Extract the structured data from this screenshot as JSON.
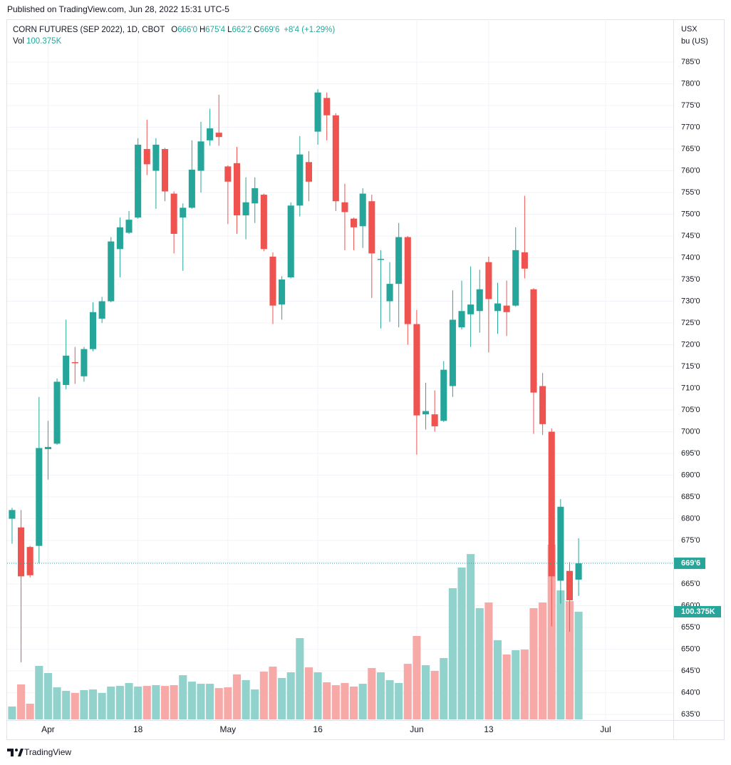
{
  "header": "Published on TradingView.com, Jun 28, 2022 15:31 UTC-5",
  "footer": "TradingView",
  "chart_data": {
    "type": "candlestick",
    "title": "CORN FUTURES (SEP 2022), 1D, CBOT",
    "legend_ohlc": [
      {
        "key": "O",
        "value": "666'0"
      },
      {
        "key": "H",
        "value": "675'4"
      },
      {
        "key": "L",
        "value": "662'2"
      },
      {
        "key": "C",
        "value": "669'6"
      }
    ],
    "change": "+8'4 (+1.29%)",
    "volume_title": "Vol",
    "volume_value_label": "100.375K",
    "y_unit": [
      "USX",
      "bu (US)"
    ],
    "up_color": "#26a69a",
    "down_color": "#ef5350",
    "up_volume_color": "#92d2cc",
    "down_volume_color": "#f7a9a7",
    "open": [
      680,
      678,
      673.5,
      673.75,
      696,
      697.25,
      710.75,
      716,
      712.75,
      719,
      726,
      730,
      742,
      745.75,
      749.25,
      765,
      760,
      765,
      754.75,
      749.25,
      751.5,
      760,
      767,
      768.75,
      761,
      761.75,
      749.75,
      752.5,
      754.5,
      740.25,
      729.25,
      735.5,
      752,
      762,
      769,
      776.75,
      772.75,
      752.75,
      749,
      747.25,
      753,
      739.5,
      730,
      734,
      744.75,
      724.75,
      704,
      704,
      702.5,
      710.5,
      724,
      727,
      727.75,
      739,
      727.75,
      729,
      729,
      741.25,
      732.75,
      710.5,
      700,
      665.75,
      668,
      666
    ],
    "high": [
      682.5,
      682,
      673.75,
      708,
      702.5,
      712.25,
      725.75,
      719.5,
      719.5,
      729.75,
      731,
      744.75,
      749.25,
      750.75,
      767.5,
      771.75,
      767.5,
      765.25,
      755.25,
      752.5,
      767,
      771.25,
      774.25,
      777.5,
      761.25,
      765.5,
      758.5,
      758.5,
      754.75,
      741.25,
      735.75,
      752.75,
      768,
      764.5,
      778.75,
      778,
      773.25,
      757,
      749.25,
      756,
      754.5,
      741.75,
      739,
      748,
      745,
      728,
      711.25,
      709.5,
      716.25,
      732.5,
      734.75,
      738,
      737.25,
      740.25,
      734.25,
      734.75,
      747,
      754.25,
      733,
      713.5,
      700.75,
      684.5,
      670,
      675.5
    ],
    "low": [
      674.25,
      647,
      666.5,
      669.75,
      689,
      697,
      709.75,
      711,
      711.5,
      718.5,
      725,
      729.75,
      735.5,
      745.5,
      749,
      759,
      751.25,
      753,
      741,
      737,
      751.25,
      755,
      765.75,
      765.75,
      747.75,
      745.5,
      744.25,
      748,
      741.5,
      724.75,
      725.75,
      735.25,
      749.5,
      753,
      766,
      767,
      750.75,
      741.75,
      741.75,
      742.25,
      730.75,
      723.75,
      725.25,
      724,
      720,
      694.75,
      700.5,
      700,
      702.25,
      708,
      723.5,
      719.5,
      722.75,
      718.25,
      722.5,
      722,
      728.75,
      735.25,
      699.5,
      699.25,
      655.25,
      660.5,
      654,
      662.25
    ],
    "close": [
      682,
      666.75,
      667,
      696.25,
      696.5,
      711.5,
      717.5,
      715.75,
      719,
      727.5,
      730,
      743.75,
      747,
      748.75,
      766,
      761.5,
      766,
      755.25,
      745.5,
      751.5,
      760.25,
      766.75,
      769.75,
      767.75,
      757.5,
      749.75,
      752.75,
      756,
      742,
      729,
      735,
      752,
      763.75,
      757.5,
      778,
      772.75,
      753,
      750.5,
      747,
      754.75,
      741,
      739.75,
      734,
      744.75,
      724.75,
      703.75,
      704.75,
      701.25,
      714.25,
      725.75,
      727.75,
      729.25,
      732.75,
      730.5,
      729.5,
      727.5,
      741.75,
      737.5,
      709,
      701.75,
      666.75,
      682.75,
      661.25,
      669.75
    ],
    "volume": [
      12000,
      32600,
      14600,
      49900,
      43200,
      29900,
      26600,
      24600,
      27300,
      27900,
      24600,
      30600,
      31200,
      33900,
      30600,
      31200,
      31900,
      31200,
      31900,
      41200,
      35200,
      33200,
      33200,
      29200,
      29900,
      41900,
      36600,
      27900,
      44500,
      49200,
      38600,
      43900,
      75800,
      48500,
      43900,
      34600,
      31900,
      33900,
      30600,
      33200,
      47900,
      43900,
      36600,
      33900,
      51800,
      77800,
      50500,
      45200,
      57200,
      122300,
      141600,
      154200,
      103700,
      109000,
      73800,
      60500,
      64500,
      65100,
      103700,
      109000,
      162900,
      120300,
      110300,
      100375
    ],
    "last_price": {
      "value": 669.75,
      "label": "669'6"
    },
    "xlim": [
      -0.55,
      73.53
    ],
    "xticks": [
      {
        "value": 4,
        "label": "Apr"
      },
      {
        "value": 14,
        "label": "18"
      },
      {
        "value": 24,
        "label": "May"
      },
      {
        "value": 34,
        "label": "16"
      },
      {
        "value": 45,
        "label": "Jun"
      },
      {
        "value": 53,
        "label": "13"
      },
      {
        "value": 66,
        "label": "Jul"
      }
    ],
    "ylim": [
      633.7,
      794.84
    ],
    "yticks": [
      {
        "value": 635,
        "label": "635'0"
      },
      {
        "value": 640,
        "label": "640'0"
      },
      {
        "value": 645,
        "label": "645'0"
      },
      {
        "value": 650,
        "label": "650'0"
      },
      {
        "value": 655,
        "label": "655'0"
      },
      {
        "value": 660,
        "label": "660'0"
      },
      {
        "value": 665,
        "label": "665'0"
      },
      {
        "value": 670,
        "label": "670'0"
      },
      {
        "value": 675,
        "label": "675'0"
      },
      {
        "value": 680,
        "label": "680'0"
      },
      {
        "value": 685,
        "label": "685'0"
      },
      {
        "value": 690,
        "label": "690'0"
      },
      {
        "value": 695,
        "label": "695'0"
      },
      {
        "value": 700,
        "label": "700'0"
      },
      {
        "value": 705,
        "label": "705'0"
      },
      {
        "value": 710,
        "label": "710'0"
      },
      {
        "value": 715,
        "label": "715'0"
      },
      {
        "value": 720,
        "label": "720'0"
      },
      {
        "value": 725,
        "label": "725'0"
      },
      {
        "value": 730,
        "label": "730'0"
      },
      {
        "value": 735,
        "label": "735'0"
      },
      {
        "value": 740,
        "label": "740'0"
      },
      {
        "value": 745,
        "label": "745'0"
      },
      {
        "value": 750,
        "label": "750'0"
      },
      {
        "value": 755,
        "label": "755'0"
      },
      {
        "value": 760,
        "label": "760'0"
      },
      {
        "value": 765,
        "label": "765'0"
      },
      {
        "value": 770,
        "label": "770'0"
      },
      {
        "value": 775,
        "label": "775'0"
      },
      {
        "value": 780,
        "label": "780'0"
      },
      {
        "value": 785,
        "label": "785'0"
      }
    ],
    "grid": true
  }
}
